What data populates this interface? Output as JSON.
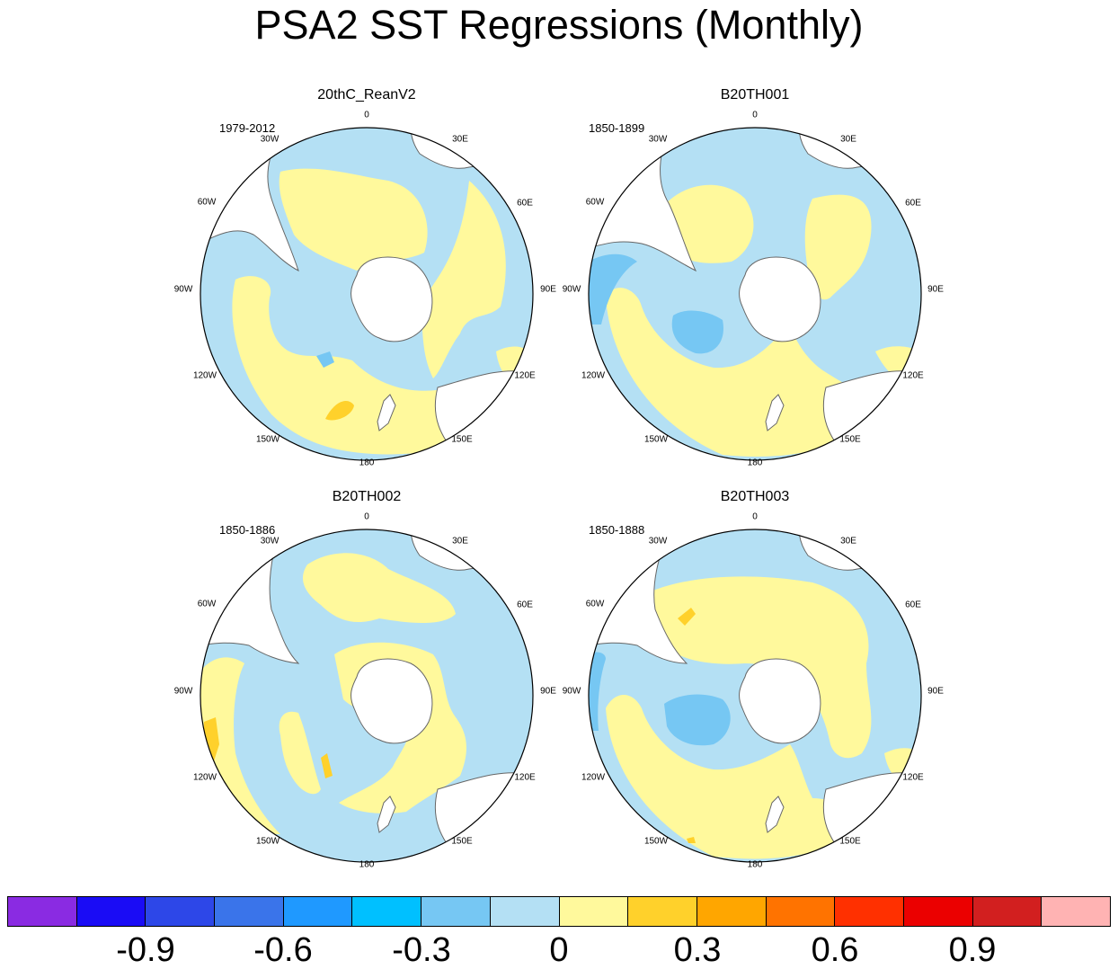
{
  "title": "PSA2 SST Regressions (Monthly)",
  "colors": {
    "land": "#ffffff",
    "coast": "#666666",
    "neg_strong": "#76c7f3",
    "neg_weak": "#b4e0f4",
    "pos_weak": "#fff99c",
    "pos_strong": "#ffd12b"
  },
  "longitude_labels": [
    "0",
    "30E",
    "60E",
    "90E",
    "120E",
    "150E",
    "180",
    "150W",
    "120W",
    "90W",
    "60W",
    "30W"
  ],
  "panels": [
    {
      "name": "20thC_ReanV2",
      "period": "1979-2012"
    },
    {
      "name": "B20TH001",
      "period": "1850-1899"
    },
    {
      "name": "B20TH002",
      "period": "1850-1886"
    },
    {
      "name": "B20TH003",
      "period": "1850-1888"
    }
  ],
  "colorbar": {
    "colors": [
      "#8a2be2",
      "#1a0cf5",
      "#2d47e8",
      "#3a74ea",
      "#1f99ff",
      "#00c0ff",
      "#76c7f3",
      "#b4e0f4",
      "#fff99c",
      "#ffd12b",
      "#ffa600",
      "#ff7300",
      "#ff3000",
      "#eb0000",
      "#d21f1f",
      "#ffb3b3"
    ],
    "tick_labels": [
      "-0.9",
      "-0.6",
      "-0.3",
      "0",
      "0.3",
      "0.6",
      "0.9"
    ]
  }
}
